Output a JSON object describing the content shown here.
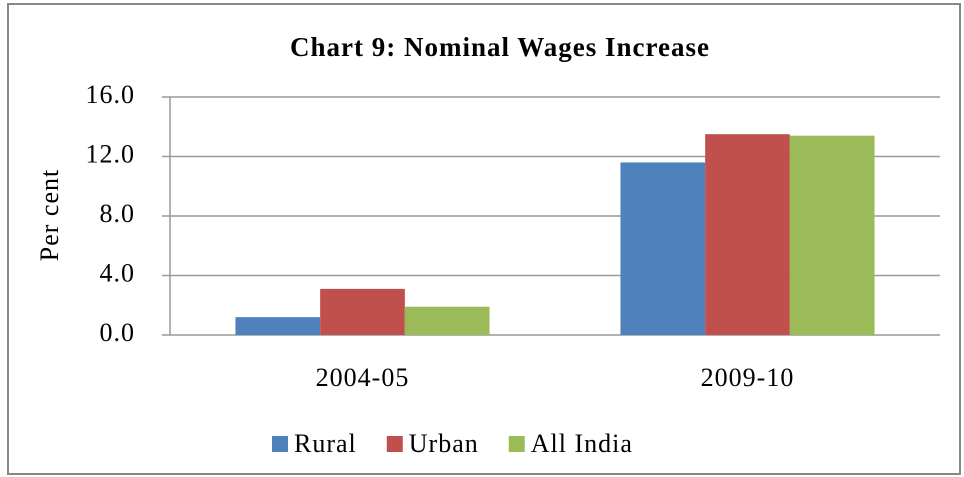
{
  "chart_data": {
    "type": "bar",
    "title": "Chart 9: Nominal Wages Increase",
    "y_label": "Per cent",
    "categories": [
      "2004-05",
      "2009-10"
    ],
    "series": [
      {
        "name": "Rural",
        "color": "#4f81bd",
        "values": [
          1.2,
          11.6
        ]
      },
      {
        "name": "Urban",
        "color": "#c0504d",
        "values": [
          3.1,
          13.5
        ]
      },
      {
        "name": "All India",
        "color": "#9bbb59",
        "values": [
          1.9,
          13.4
        ]
      }
    ],
    "ylim": [
      0,
      16
    ],
    "yticks": [
      {
        "value": 0,
        "label": "0.0"
      },
      {
        "value": 4,
        "label": "4.0"
      },
      {
        "value": 8,
        "label": "8.0"
      },
      {
        "value": 12,
        "label": "12.0"
      },
      {
        "value": 16,
        "label": "16.0"
      }
    ],
    "grid": true,
    "legend": "bottom"
  }
}
